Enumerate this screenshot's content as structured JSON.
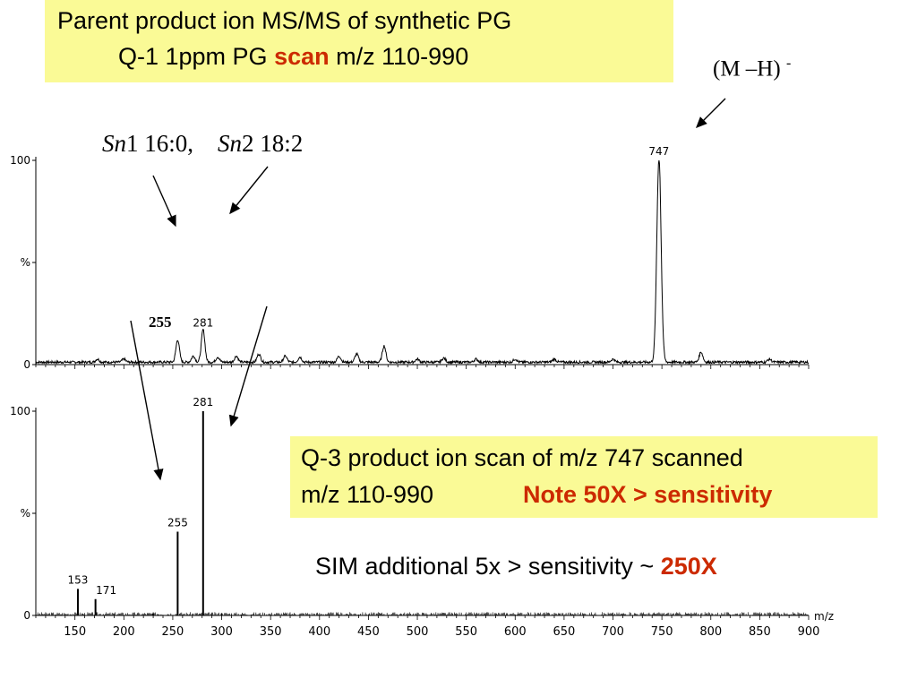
{
  "title_box": {
    "line1": "Parent product ion MS/MS of synthetic PG",
    "line2_pre": "Q-1 1ppm PG ",
    "line2_red": "scan",
    "line2_post": " m/z 110-990"
  },
  "annotations": {
    "mh_label": "(M –H)",
    "mh_sup": "-",
    "sn1_italic": "Sn",
    "sn1_rest": "1 16:0,",
    "sn2_italic": "Sn",
    "sn2_rest": "2 18:2",
    "p255": "255"
  },
  "q3_box": {
    "line1": "Q-3 product ion scan of m/z 747  scanned",
    "line2": "m/z 110-990",
    "note": "Note 50X > sensitivity"
  },
  "sim": {
    "text_pre": "SIM  additional 5x > sensitivity ~ ",
    "text_red": "250X"
  },
  "colors": {
    "box_fill": "#fafa96",
    "accent_red": "#cc2a00"
  },
  "chart_data": [
    {
      "type": "line",
      "title": "",
      "xlabel": "m/z",
      "ylabel": "%",
      "xlim": [
        110,
        900
      ],
      "ylim": [
        0,
        100
      ],
      "yticks": [
        "0",
        "%",
        "100"
      ],
      "peaks": [
        {
          "mz": 173,
          "intensity": 1.5
        },
        {
          "mz": 200,
          "intensity": 1.5
        },
        {
          "mz": 255,
          "intensity": 11
        },
        {
          "mz": 271,
          "intensity": 3
        },
        {
          "mz": 281,
          "intensity": 16
        },
        {
          "mz": 296,
          "intensity": 2.5
        },
        {
          "mz": 315,
          "intensity": 3
        },
        {
          "mz": 338,
          "intensity": 4
        },
        {
          "mz": 365,
          "intensity": 3
        },
        {
          "mz": 380,
          "intensity": 2.5
        },
        {
          "mz": 420,
          "intensity": 3
        },
        {
          "mz": 438,
          "intensity": 4
        },
        {
          "mz": 466,
          "intensity": 8
        },
        {
          "mz": 500,
          "intensity": 1.5
        },
        {
          "mz": 527,
          "intensity": 2
        },
        {
          "mz": 560,
          "intensity": 1.5
        },
        {
          "mz": 600,
          "intensity": 1.5
        },
        {
          "mz": 640,
          "intensity": 1.5
        },
        {
          "mz": 700,
          "intensity": 1.5
        },
        {
          "mz": 747,
          "intensity": 100
        },
        {
          "mz": 790,
          "intensity": 5
        },
        {
          "mz": 860,
          "intensity": 1.5
        }
      ],
      "labels": [
        {
          "mz": 281,
          "text": "281"
        },
        {
          "mz": 747,
          "text": "747"
        }
      ]
    },
    {
      "type": "bar",
      "title": "",
      "xlabel": "m/z",
      "ylabel": "%",
      "xlim": [
        110,
        900
      ],
      "ylim": [
        0,
        100
      ],
      "xticks": [
        150,
        200,
        250,
        300,
        350,
        400,
        450,
        500,
        550,
        600,
        650,
        700,
        750,
        800,
        850,
        900
      ],
      "yticks": [
        "0",
        "%",
        "100"
      ],
      "peaks": [
        {
          "mz": 153,
          "intensity": 13
        },
        {
          "mz": 171,
          "intensity": 8
        },
        {
          "mz": 230,
          "intensity": 1
        },
        {
          "mz": 255,
          "intensity": 41
        },
        {
          "mz": 281,
          "intensity": 100
        },
        {
          "mz": 300,
          "intensity": 1
        }
      ],
      "labels": [
        {
          "mz": 153,
          "text": "153"
        },
        {
          "mz": 171,
          "text": "171"
        },
        {
          "mz": 255,
          "text": "255"
        },
        {
          "mz": 281,
          "text": "281"
        }
      ]
    }
  ]
}
